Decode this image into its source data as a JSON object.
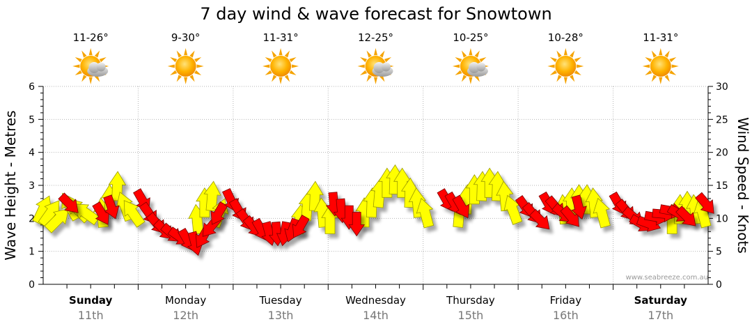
{
  "chart_data": {
    "type": "arrow-timeseries",
    "title": "7 day wind & wave forecast for Snowtown",
    "ylabel_left": "Wave Height - Metres",
    "ylabel_right": "Wind Speed - Knots",
    "ylim_left": [
      0,
      6
    ],
    "ylim_right": [
      0,
      30
    ],
    "left_ticks": [
      "0",
      "1",
      "2",
      "3",
      "4",
      "5",
      "6"
    ],
    "right_ticks": [
      "0",
      "5",
      "10",
      "15",
      "20",
      "25",
      "30"
    ],
    "watermark": "www.seabreeze.com.au",
    "days": [
      {
        "name": "Sunday",
        "date": "11th",
        "temp": "11-26°",
        "weather": "partly-cloudy",
        "bold": true
      },
      {
        "name": "Monday",
        "date": "12th",
        "temp": "9-30°",
        "weather": "sunny",
        "bold": false
      },
      {
        "name": "Tuesday",
        "date": "13th",
        "temp": "11-31°",
        "weather": "sunny",
        "bold": false
      },
      {
        "name": "Wednesday",
        "date": "14th",
        "temp": "12-25°",
        "weather": "partly-cloudy",
        "bold": false
      },
      {
        "name": "Thursday",
        "date": "15th",
        "temp": "10-25°",
        "weather": "partly-cloudy",
        "bold": false
      },
      {
        "name": "Friday",
        "date": "16th",
        "temp": "10-28°",
        "weather": "sunny",
        "bold": false
      },
      {
        "name": "Saturday",
        "date": "17th",
        "temp": "11-31°",
        "weather": "sunny",
        "bold": true
      }
    ],
    "wind_series": {
      "name": "Wind (knots)",
      "color": "#ffff00",
      "points": [
        [
          0.0,
          13.5,
          205
        ],
        [
          0.08,
          13.0,
          215
        ],
        [
          0.16,
          12.0,
          225
        ],
        [
          0.28,
          14.0,
          150
        ],
        [
          0.36,
          13.5,
          135
        ],
        [
          0.44,
          13.0,
          125
        ],
        [
          0.62,
          13.0,
          175
        ],
        [
          0.7,
          15.0,
          180
        ],
        [
          0.78,
          17.0,
          182
        ],
        [
          0.86,
          14.0,
          160
        ],
        [
          0.94,
          13.0,
          145
        ],
        [
          1.62,
          12.0,
          175
        ],
        [
          1.7,
          14.5,
          180
        ],
        [
          1.78,
          15.5,
          185
        ],
        [
          1.86,
          13.0,
          200
        ],
        [
          2.7,
          12.0,
          185
        ],
        [
          2.78,
          14.0,
          185
        ],
        [
          2.86,
          15.5,
          182
        ],
        [
          2.94,
          13.0,
          175
        ],
        [
          3.02,
          12.0,
          180
        ],
        [
          3.38,
          13.0,
          180
        ],
        [
          3.46,
          14.5,
          182
        ],
        [
          3.54,
          16.0,
          185
        ],
        [
          3.62,
          17.5,
          180
        ],
        [
          3.7,
          18.0,
          182
        ],
        [
          3.78,
          17.5,
          180
        ],
        [
          3.86,
          16.0,
          182
        ],
        [
          3.94,
          14.5,
          175
        ],
        [
          4.02,
          13.0,
          165
        ],
        [
          4.38,
          13.0,
          185
        ],
        [
          4.46,
          15.0,
          182
        ],
        [
          4.54,
          16.5,
          180
        ],
        [
          4.62,
          17.0,
          182
        ],
        [
          4.7,
          17.5,
          180
        ],
        [
          4.78,
          17.0,
          182
        ],
        [
          4.86,
          15.5,
          175
        ],
        [
          4.94,
          13.5,
          160
        ],
        [
          5.48,
          13.5,
          175
        ],
        [
          5.56,
          14.5,
          182
        ],
        [
          5.64,
          15.0,
          180
        ],
        [
          5.72,
          15.0,
          182
        ],
        [
          5.8,
          14.5,
          175
        ],
        [
          5.88,
          13.0,
          165
        ],
        [
          6.62,
          12.0,
          180
        ],
        [
          6.7,
          13.5,
          182
        ],
        [
          6.78,
          14.0,
          180
        ],
        [
          6.86,
          13.5,
          175
        ],
        [
          6.94,
          13.0,
          165
        ]
      ]
    },
    "wave_series": {
      "name": "Wave (metres)",
      "color": "#ff0000",
      "points": [
        [
          0.28,
          2.3,
          315
        ],
        [
          0.62,
          2.0,
          330
        ],
        [
          0.72,
          2.2,
          340
        ],
        [
          1.05,
          2.4,
          330
        ],
        [
          1.12,
          2.0,
          325
        ],
        [
          1.2,
          1.7,
          320
        ],
        [
          1.28,
          1.5,
          315
        ],
        [
          1.36,
          1.4,
          310
        ],
        [
          1.44,
          1.3,
          305
        ],
        [
          1.52,
          1.2,
          330
        ],
        [
          1.6,
          1.1,
          345
        ],
        [
          1.68,
          1.3,
          30
        ],
        [
          1.76,
          1.6,
          40
        ],
        [
          1.84,
          2.0,
          30
        ],
        [
          1.98,
          2.4,
          335
        ],
        [
          2.06,
          2.1,
          330
        ],
        [
          2.14,
          1.8,
          325
        ],
        [
          2.22,
          1.6,
          320
        ],
        [
          2.3,
          1.5,
          330
        ],
        [
          2.38,
          1.4,
          345
        ],
        [
          2.46,
          1.4,
          355
        ],
        [
          2.54,
          1.4,
          10
        ],
        [
          2.62,
          1.5,
          20
        ],
        [
          2.7,
          1.6,
          30
        ],
        [
          3.06,
          2.3,
          355
        ],
        [
          3.14,
          2.1,
          355
        ],
        [
          3.22,
          1.9,
          0
        ],
        [
          3.3,
          1.7,
          0
        ],
        [
          4.25,
          2.4,
          330
        ],
        [
          4.33,
          2.3,
          330
        ],
        [
          4.41,
          2.2,
          330
        ],
        [
          5.08,
          2.2,
          325
        ],
        [
          5.16,
          2.0,
          320
        ],
        [
          5.24,
          1.8,
          315
        ],
        [
          5.32,
          2.3,
          330
        ],
        [
          5.4,
          2.2,
          320
        ],
        [
          5.48,
          2.0,
          310
        ],
        [
          5.56,
          1.9,
          320
        ],
        [
          5.64,
          2.2,
          345
        ],
        [
          6.06,
          2.3,
          330
        ],
        [
          6.14,
          2.1,
          320
        ],
        [
          6.22,
          1.9,
          310
        ],
        [
          6.3,
          1.7,
          300
        ],
        [
          6.38,
          1.7,
          290
        ],
        [
          6.46,
          1.9,
          280
        ],
        [
          6.54,
          2.0,
          275
        ],
        [
          6.62,
          2.1,
          280
        ],
        [
          6.7,
          2.0,
          300
        ],
        [
          6.78,
          1.9,
          315
        ],
        [
          6.98,
          2.3,
          320
        ]
      ]
    }
  }
}
